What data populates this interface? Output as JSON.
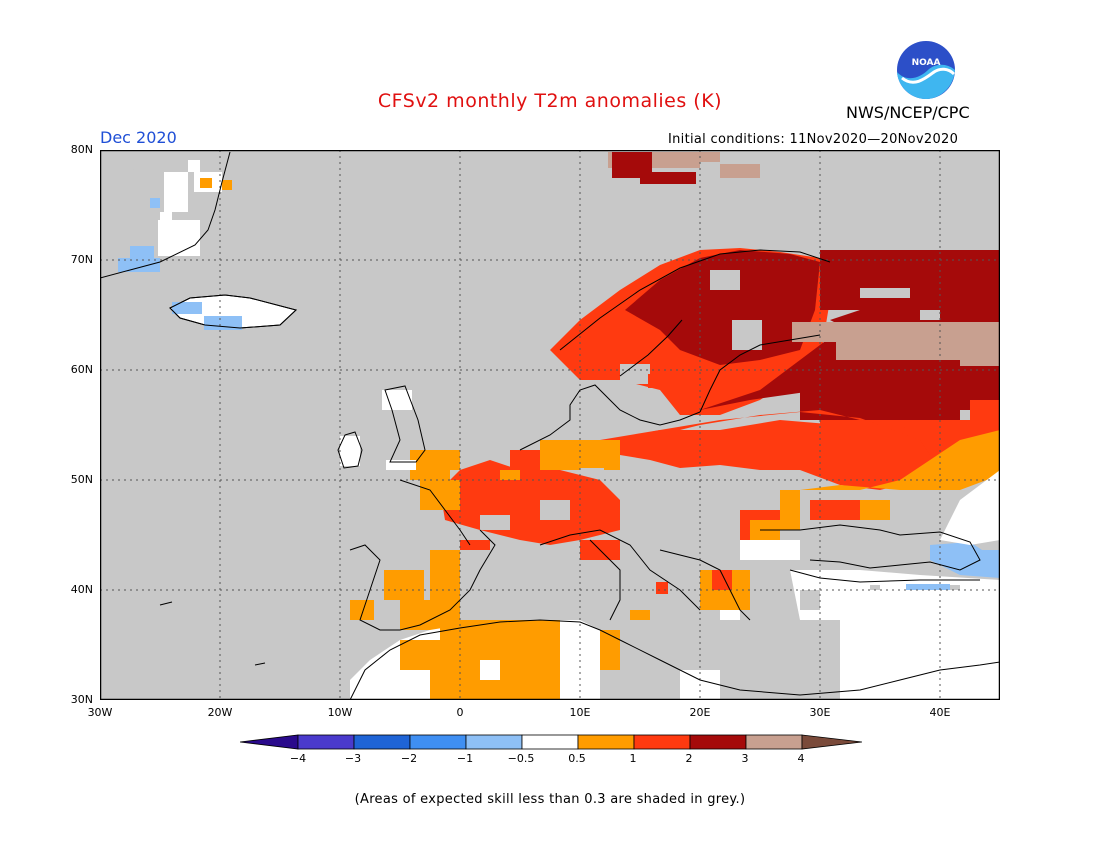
{
  "title": "CFSv2 monthly T2m anomalies (K)",
  "agency": "NWS/NCEP/CPC",
  "logo_text": "NOAA",
  "month": "Dec 2020",
  "initial_conditions": "Initial conditions: 11Nov2020—20Nov2020",
  "note": "(Areas of expected skill less than 0.3 are shaded in grey.)",
  "lat_labels": [
    "80N",
    "70N",
    "60N",
    "50N",
    "40N",
    "30N"
  ],
  "lon_labels": [
    "30W",
    "20W",
    "10W",
    "0",
    "10E",
    "20E",
    "30E",
    "40E"
  ],
  "colorbar": {
    "ticks": [
      "−4",
      "−3",
      "−2",
      "−1",
      "−0.5",
      "0.5",
      "1",
      "2",
      "3",
      "4"
    ],
    "colors": [
      "#2a0a8c",
      "#4a3acc",
      "#1f64d6",
      "#3f8ff2",
      "#8ec0f6",
      "#ffffff",
      "#ff9c00",
      "#ff3a10",
      "#a50a0a",
      "#c8a090",
      "#7a4a3a"
    ]
  },
  "colors": {
    "skill_grey": "#c8c8c8",
    "title_red": "#e01010",
    "month_blue": "#1f4fd6"
  }
}
